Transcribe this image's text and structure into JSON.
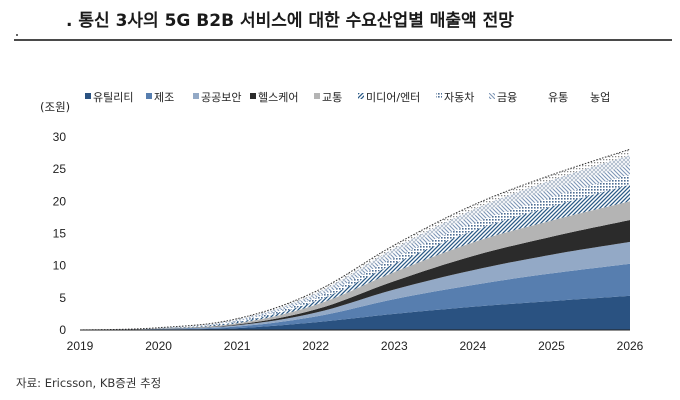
{
  "title": ". 통신 3사의 5G B2B 서비스에 대한 수요산업별 매출액 전망",
  "source": "자료: Ericsson, KB증권 추정",
  "colors": {
    "유틸리티": "#2a5281",
    "제조": "#577eaf",
    "공공보안": "#93a9c6",
    "헬스케어": "#2b2b2b",
    "교통": "#b4b4b4",
    "미디어/엔터": "#2b5a86",
    "자동차": "#6b83a2",
    "금융": "#a9bdd6",
    "유통": "#c5d0dc",
    "농업": "#d4d4d4"
  },
  "chart_data": {
    "type": "area",
    "stacked": true,
    "title": ". 통신 3사의 5G B2B 서비스에 대한 수요산업별 매출액 전망",
    "ylabel": "(조원)",
    "xlabel": "",
    "ylim": [
      0,
      30
    ],
    "yticks": [
      0,
      5,
      10,
      15,
      20,
      25,
      30
    ],
    "x": [
      "2019",
      "2020",
      "2021",
      "2022",
      "2023",
      "2024",
      "2025",
      "2026"
    ],
    "legend_position": "top",
    "grid": false,
    "series": [
      {
        "name": "유틸리티",
        "values": [
          0,
          0.1,
          0.3,
          1.2,
          2.5,
          3.6,
          4.5,
          5.3
        ],
        "fill": "solid"
      },
      {
        "name": "제조",
        "values": [
          0,
          0.05,
          0.25,
          0.9,
          2.3,
          3.4,
          4.3,
          5.0
        ],
        "fill": "solid"
      },
      {
        "name": "공공보안",
        "values": [
          0,
          0.05,
          0.2,
          0.6,
          1.5,
          2.3,
          2.9,
          3.4
        ],
        "fill": "solid"
      },
      {
        "name": "헬스케어",
        "values": [
          0,
          0.02,
          0.1,
          0.5,
          1.3,
          2.2,
          2.8,
          3.4
        ],
        "fill": "solid"
      },
      {
        "name": "교통",
        "values": [
          0,
          0.03,
          0.2,
          0.7,
          1.4,
          2.1,
          2.5,
          2.9
        ],
        "fill": "solid"
      },
      {
        "name": "미디어/엔터",
        "values": [
          0,
          0.03,
          0.2,
          0.6,
          1.3,
          1.8,
          2.2,
          2.6
        ],
        "fill": "diag"
      },
      {
        "name": "자동차",
        "values": [
          0,
          0.02,
          0.15,
          0.5,
          0.9,
          1.2,
          1.4,
          1.6
        ],
        "fill": "dots"
      },
      {
        "name": "금융",
        "values": [
          0,
          0.02,
          0.15,
          0.4,
          0.8,
          1.1,
          1.3,
          1.5
        ],
        "fill": "diag-light"
      },
      {
        "name": "유통",
        "values": [
          0,
          0.02,
          0.1,
          0.3,
          0.7,
          1.0,
          1.4,
          1.5
        ],
        "fill": "cross"
      },
      {
        "name": "농업",
        "values": [
          0,
          0.01,
          0.1,
          0.3,
          0.5,
          0.7,
          0.8,
          0.9
        ],
        "fill": "dots-light"
      }
    ]
  }
}
